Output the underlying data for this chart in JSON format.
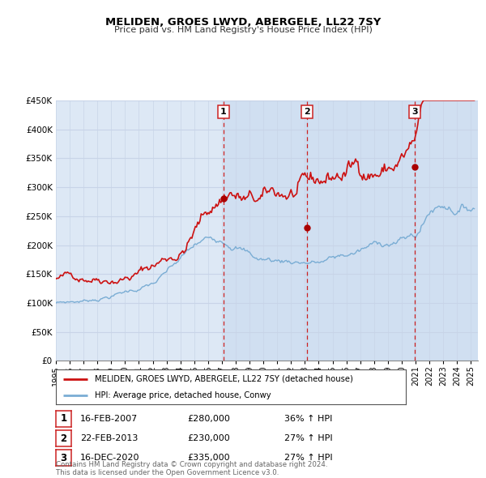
{
  "title": "MELIDEN, GROES LWYD, ABERGELE, LL22 7SY",
  "subtitle": "Price paid vs. HM Land Registry's House Price Index (HPI)",
  "ylim": [
    0,
    450000
  ],
  "yticks": [
    0,
    50000,
    100000,
    150000,
    200000,
    250000,
    300000,
    350000,
    400000,
    450000
  ],
  "ytick_labels": [
    "£0",
    "£50K",
    "£100K",
    "£150K",
    "£200K",
    "£250K",
    "£300K",
    "£350K",
    "£400K",
    "£450K"
  ],
  "xlim_start": 1995.0,
  "xlim_end": 2025.5,
  "xtick_years": [
    1995,
    1996,
    1997,
    1998,
    1999,
    2000,
    2001,
    2002,
    2003,
    2004,
    2005,
    2006,
    2007,
    2008,
    2009,
    2010,
    2011,
    2012,
    2013,
    2014,
    2015,
    2016,
    2017,
    2018,
    2019,
    2020,
    2021,
    2022,
    2023,
    2024,
    2025
  ],
  "background_color": "#ffffff",
  "plot_bg_color": "#dde8f5",
  "grid_color": "#c8d4e8",
  "red_line_color": "#cc1111",
  "blue_line_color": "#7aadd4",
  "marker_color": "#aa0000",
  "vline_color": "#cc2222",
  "shade_color": "#c5d8f0",
  "annotations": [
    {
      "num": 1,
      "x": 2007.12,
      "y_marker": 280000
    },
    {
      "num": 2,
      "x": 2013.14,
      "y_marker": 230000
    },
    {
      "num": 3,
      "x": 2020.96,
      "y_marker": 335000
    }
  ],
  "legend_entries": [
    "MELIDEN, GROES LWYD, ABERGELE, LL22 7SY (detached house)",
    "HPI: Average price, detached house, Conwy"
  ],
  "table_rows": [
    {
      "num": 1,
      "date": "16-FEB-2007",
      "price": "£280,000",
      "pct": "36% ↑ HPI"
    },
    {
      "num": 2,
      "date": "22-FEB-2013",
      "price": "£230,000",
      "pct": "27% ↑ HPI"
    },
    {
      "num": 3,
      "date": "16-DEC-2020",
      "price": "£335,000",
      "pct": "27% ↑ HPI"
    }
  ],
  "footnote": "Contains HM Land Registry data © Crown copyright and database right 2024.\nThis data is licensed under the Open Government Licence v3.0."
}
